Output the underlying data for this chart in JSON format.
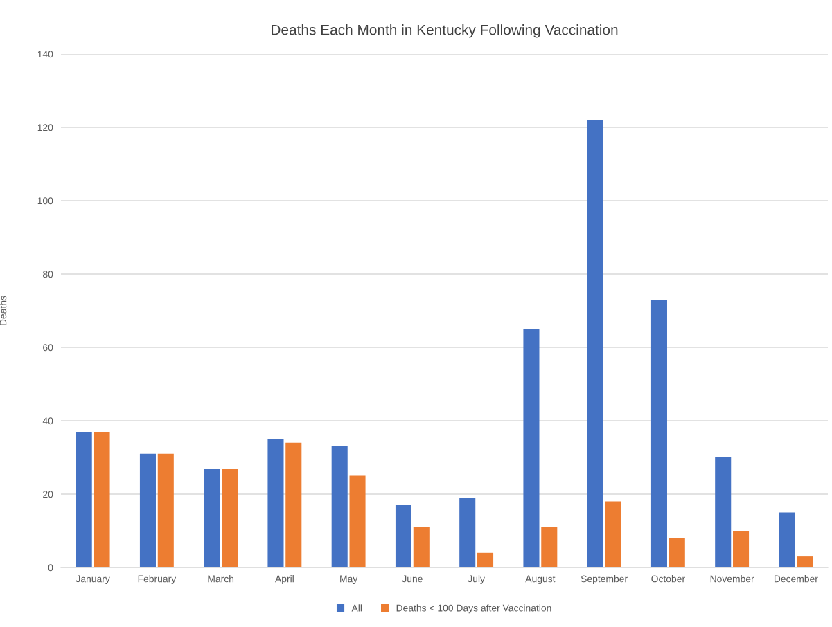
{
  "chart_data": {
    "type": "bar",
    "title": "Deaths Each Month in Kentucky Following Vaccination",
    "ylabel": "Deaths",
    "categories": [
      "January",
      "February",
      "March",
      "April",
      "May",
      "June",
      "July",
      "August",
      "September",
      "October",
      "November",
      "December"
    ],
    "series": [
      {
        "name": "All",
        "color": "#4472c4",
        "values": [
          37,
          31,
          27,
          35,
          33,
          17,
          19,
          65,
          122,
          73,
          30,
          15
        ]
      },
      {
        "name": "Deaths < 100 Days after Vaccination",
        "color": "#ed7d31",
        "values": [
          37,
          31,
          27,
          34,
          25,
          11,
          4,
          11,
          18,
          8,
          10,
          3
        ]
      }
    ],
    "ylim": [
      0,
      140
    ],
    "yticks": [
      0,
      20,
      40,
      60,
      80,
      100,
      120,
      140
    ],
    "grid": "y",
    "legend": "bottom"
  }
}
